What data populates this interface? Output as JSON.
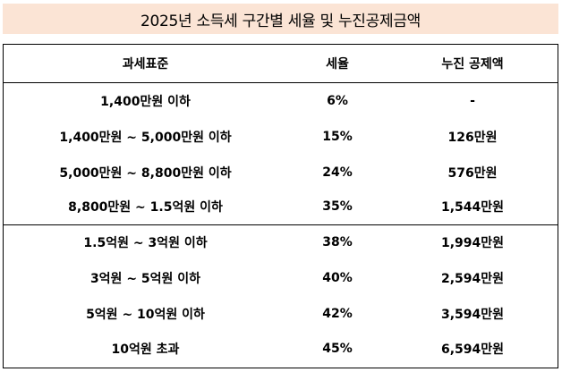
{
  "title": "2025년 소득세 구간별 세율 및 누진공제금액",
  "table": {
    "headers": [
      "과세표준",
      "세율",
      "누진 공제액"
    ],
    "rows": [
      [
        "1,400만원 이하",
        "6%",
        "-"
      ],
      [
        "1,400만원 ~ 5,000만원 이하",
        "15%",
        "126만원"
      ],
      [
        "5,000만원 ~ 8,800만원 이하",
        "24%",
        "576만원"
      ],
      [
        "8,800만원 ~ 1.5억원 이하",
        "35%",
        "1,544만원"
      ],
      [
        "1.5억원 ~ 3억원 이하",
        "38%",
        "1,994만원"
      ],
      [
        "3억원 ~ 5억원 이하",
        "40%",
        "2,594만원"
      ],
      [
        "5억원 ~ 10억원 이하",
        "42%",
        "3,594만원"
      ],
      [
        "10억원 초과",
        "45%",
        "6,594만원"
      ]
    ]
  }
}
